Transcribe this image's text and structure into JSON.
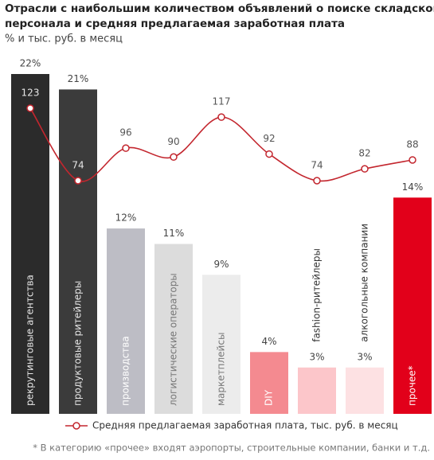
{
  "chart_data": {
    "type": "bar",
    "title": [
      "Отрасли с наибольшим количеством объявлений о поиске складского",
      "персонала и средняя предлагаемая заработная плата"
    ],
    "subtitle": "% и тыс. руб. в месяц",
    "categories": [
      "рекрутинговые агентства",
      "продуктовые ритейлеры",
      "производства",
      "логистические операторы",
      "маркетплейсы",
      "DIY",
      "fashion-ритейлеры",
      "алкогольные компании",
      "прочее*"
    ],
    "values": [
      22,
      21,
      12,
      11,
      9,
      4,
      3,
      3,
      14
    ],
    "value_labels": [
      "22%",
      "21%",
      "12%",
      "11%",
      "9%",
      "4%",
      "3%",
      "3%",
      "14%"
    ],
    "colors": [
      "#2b2b2b",
      "#3b3b3b",
      "#bdbdc5",
      "#dcdcdc",
      "#ececec",
      "#f48a90",
      "#fcc6ca",
      "#fde1e3",
      "#e2001a"
    ],
    "label_colors": [
      "#e6e6e6",
      "#e6e6e6",
      "#ffffff",
      "#777777",
      "#777777",
      "#ffffff",
      "#333333",
      "#333333",
      "#ffffff"
    ],
    "label_positions": [
      "inside",
      "inside",
      "inside",
      "inside",
      "inside",
      "inside",
      "above",
      "above",
      "inside"
    ],
    "ylim": [
      0,
      22
    ],
    "y2lim": [
      60,
      130
    ],
    "series": [
      {
        "name": "Средняя предлагаемая заработная плата, тыс. руб. в месяц",
        "type": "line",
        "axis": "y2",
        "color": "#c3262e",
        "values": [
          123,
          74,
          96,
          90,
          117,
          92,
          74,
          82,
          88
        ]
      }
    ],
    "footnote": "* В категорию «прочее» входят аэропорты, строительные компании, банки и т.д."
  }
}
